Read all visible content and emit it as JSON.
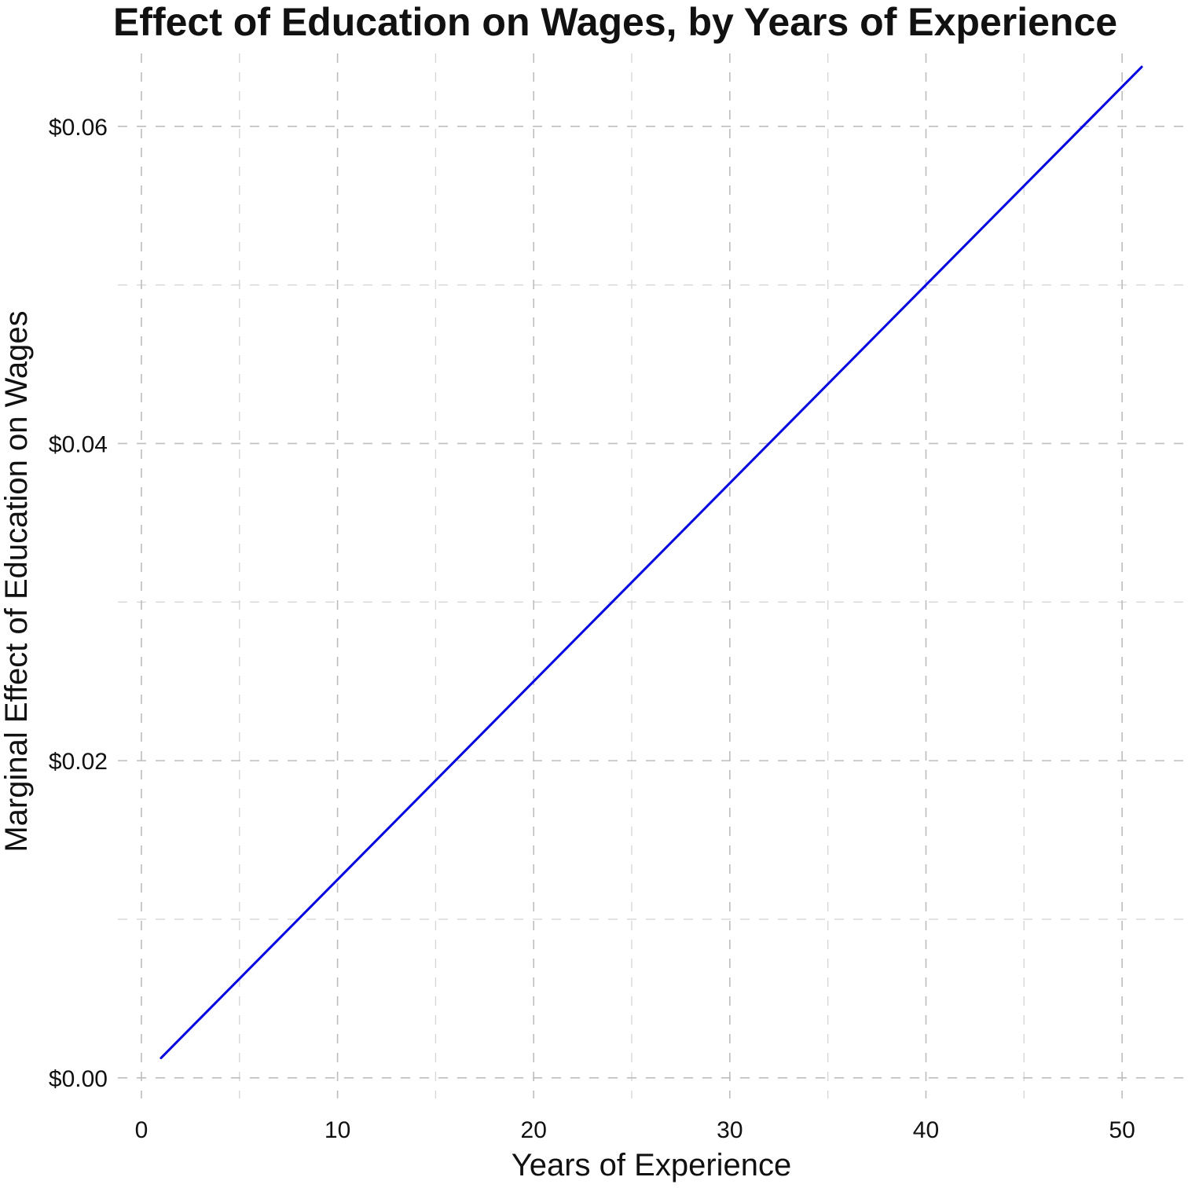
{
  "chart_data": {
    "type": "line",
    "title": "Effect of Education on Wages, by Years of Experience",
    "xlabel": "Years of Experience",
    "ylabel": "Marginal Effect of Education on Wages",
    "xlim": [
      -1.2,
      53.2
    ],
    "ylim": [
      -0.0013,
      0.0646
    ],
    "x_ticks": [
      0,
      10,
      20,
      30,
      40,
      50
    ],
    "x_tick_labels": [
      "0",
      "10",
      "20",
      "30",
      "40",
      "50"
    ],
    "y_ticks": [
      0,
      0.02,
      0.04,
      0.06
    ],
    "y_tick_labels": [
      "$0.00",
      "$0.02",
      "$0.04",
      "$0.06"
    ],
    "x_minor_ticks": [
      5,
      15,
      25,
      35,
      45
    ],
    "y_minor_ticks": [
      0.01,
      0.03,
      0.05
    ],
    "grid": true,
    "grid_style": "dashed",
    "legend": "none",
    "series": [
      {
        "color": "#0000ff",
        "x": [
          1,
          51
        ],
        "y": [
          0.00125,
          0.06375
        ]
      }
    ]
  }
}
